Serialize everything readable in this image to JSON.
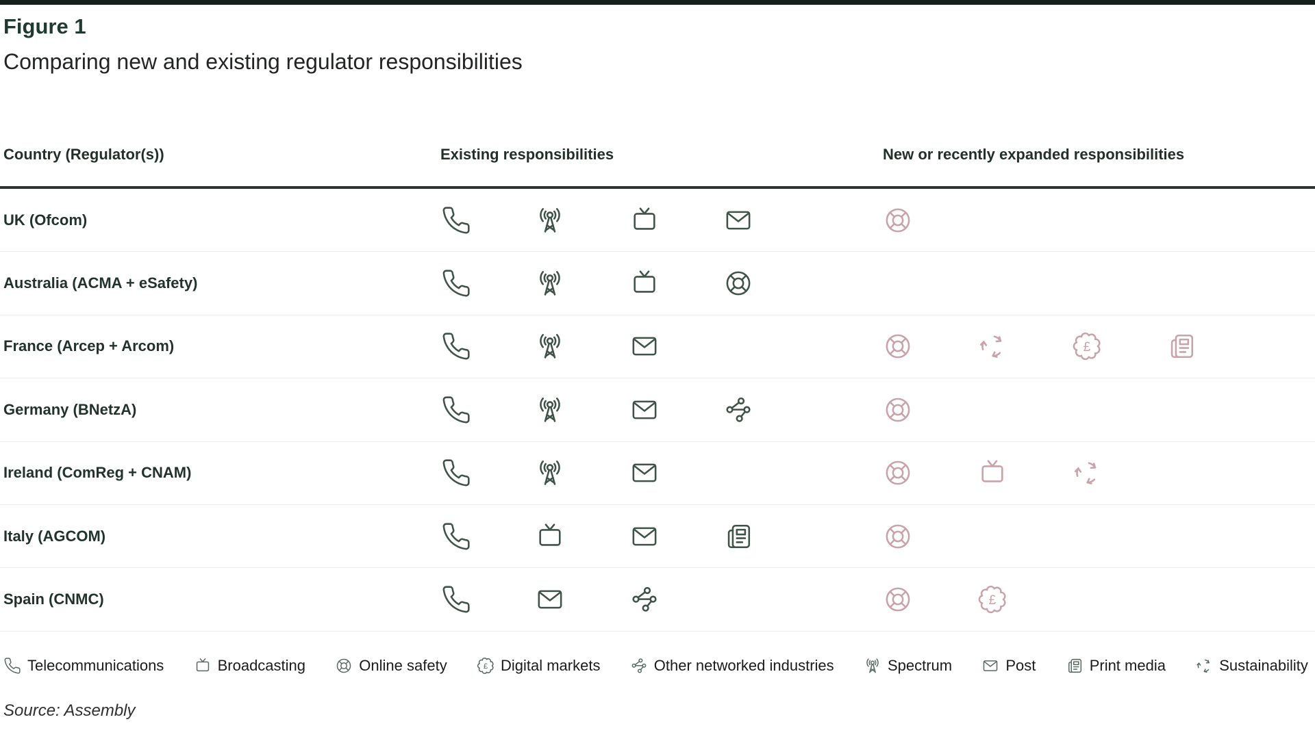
{
  "chart_data": {
    "type": "table",
    "figure_label": "Figure 1",
    "title": "Comparing new and existing regulator responsibilities",
    "headers": {
      "country": "Country (Regulator(s))",
      "existing": "Existing responsibilities",
      "new": "New or recently expanded responsibilities"
    },
    "rows": [
      {
        "country": "UK (Ofcom)",
        "existing": [
          "telecommunications",
          "spectrum",
          "broadcasting",
          "post"
        ],
        "new": [
          "online-safety"
        ]
      },
      {
        "country": "Australia (ACMA + eSafety)",
        "existing": [
          "telecommunications",
          "spectrum",
          "broadcasting",
          "online-safety"
        ],
        "new": []
      },
      {
        "country": "France (Arcep + Arcom)",
        "existing": [
          "telecommunications",
          "spectrum",
          "post"
        ],
        "new": [
          "online-safety",
          "sustainability",
          "digital-markets",
          "print-media"
        ]
      },
      {
        "country": "Germany (BNetzA)",
        "existing": [
          "telecommunications",
          "spectrum",
          "post",
          "other-networked-industries"
        ],
        "new": [
          "online-safety"
        ]
      },
      {
        "country": "Ireland (ComReg + CNAM)",
        "existing": [
          "telecommunications",
          "spectrum",
          "post"
        ],
        "new": [
          "online-safety",
          "broadcasting",
          "sustainability"
        ]
      },
      {
        "country": "Italy (AGCOM)",
        "existing": [
          "telecommunications",
          "broadcasting",
          "post",
          "print-media"
        ],
        "new": [
          "online-safety"
        ]
      },
      {
        "country": "Spain (CNMC)",
        "existing": [
          "telecommunications",
          "post",
          "other-networked-industries"
        ],
        "new": [
          "online-safety",
          "digital-markets"
        ]
      }
    ],
    "legend": [
      {
        "icon": "telecommunications",
        "label": "Telecommunications"
      },
      {
        "icon": "broadcasting",
        "label": "Broadcasting"
      },
      {
        "icon": "online-safety",
        "label": "Online safety"
      },
      {
        "icon": "digital-markets",
        "label": "Digital markets"
      },
      {
        "icon": "other-networked-industries",
        "label": "Other networked industries"
      },
      {
        "icon": "spectrum",
        "label": "Spectrum"
      },
      {
        "icon": "post",
        "label": "Post"
      },
      {
        "icon": "print-media",
        "label": "Print media"
      },
      {
        "icon": "sustainability",
        "label": "Sustainability"
      }
    ],
    "source": "Source: Assembly"
  },
  "colors": {
    "accent_title": "#1e3a31",
    "existing_icon": "#3f5349",
    "new_icon": "#c9a3aa",
    "legend_icon": "#5a6a62",
    "thick_rule": "#2a362f"
  }
}
